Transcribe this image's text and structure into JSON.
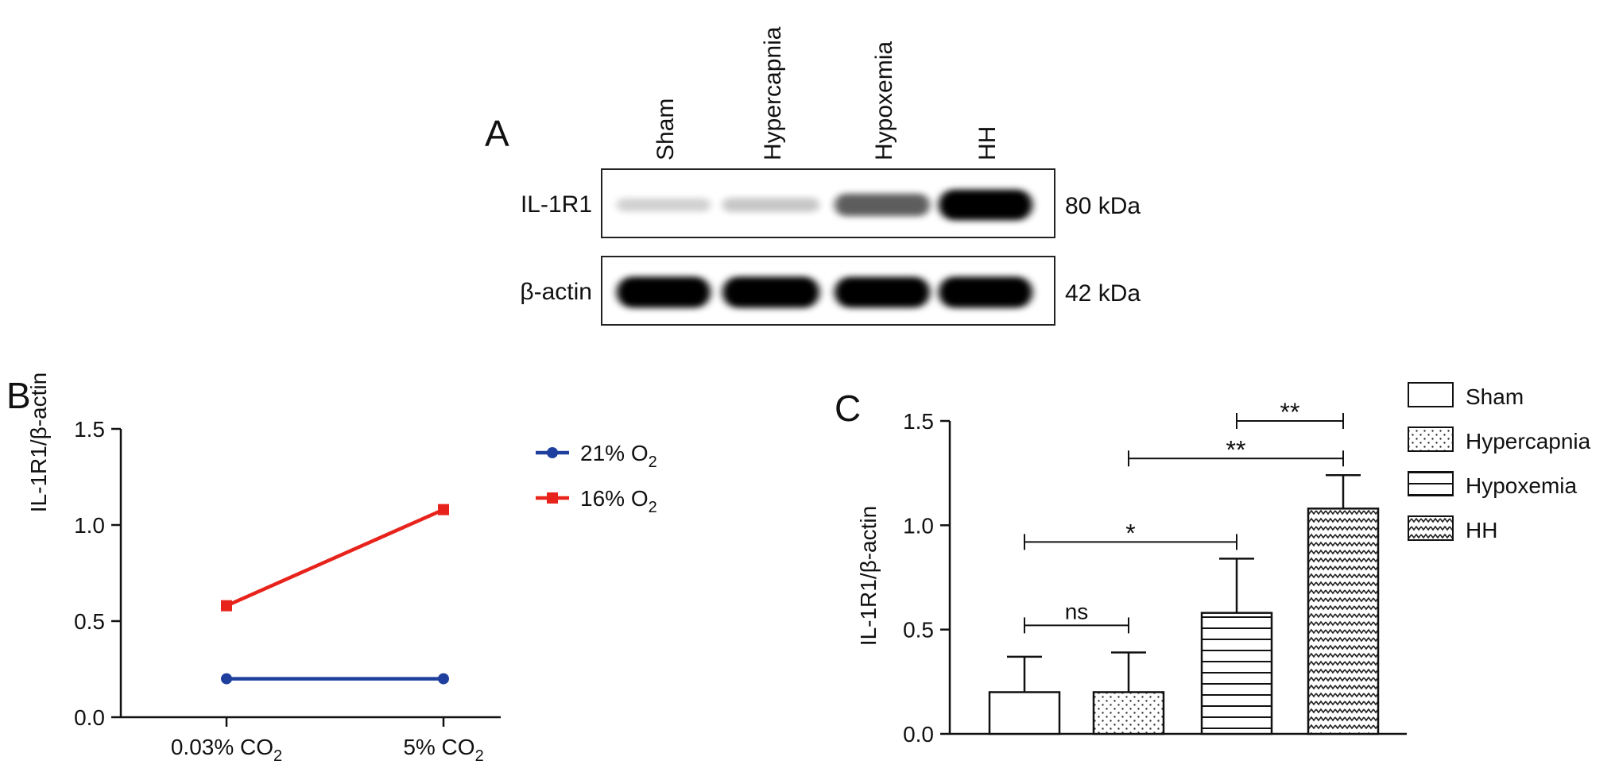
{
  "panels": {
    "a": "A",
    "b": "B",
    "c": "C"
  },
  "blot": {
    "lanes": [
      "Sham",
      "Hypercapnia",
      "Hypoxemia",
      "HH"
    ],
    "rows": [
      {
        "label": "IL-1R1",
        "kda": "80 kDa",
        "intensity": [
          0.1,
          0.14,
          0.55,
          0.95
        ]
      },
      {
        "label": "β-actin",
        "kda": "42 kDa",
        "intensity": [
          0.97,
          0.97,
          0.95,
          0.97
        ]
      }
    ]
  },
  "chart_data": [
    {
      "type": "line",
      "panel": "B",
      "ylabel": "IL-1R1/β-actin",
      "ylim": [
        0,
        1.5
      ],
      "yticks": [
        "0.0",
        "0.5",
        "1.0",
        "1.5"
      ],
      "categories": [
        {
          "pre": "0.03% CO",
          "sub": "2"
        },
        {
          "pre": "5% CO",
          "sub": "2"
        }
      ],
      "series": [
        {
          "name": {
            "pre": "21% O",
            "sub": "2"
          },
          "values": [
            0.2,
            0.2
          ],
          "color": "#1f3f9e",
          "marker": "circle"
        },
        {
          "name": {
            "pre": "16% O",
            "sub": "2"
          },
          "values": [
            0.58,
            1.08
          ],
          "color": "#e8231c",
          "marker": "square"
        }
      ],
      "legend": "right"
    },
    {
      "type": "bar",
      "panel": "C",
      "ylabel": "IL-1R1/β-actin",
      "ylim": [
        0,
        1.5
      ],
      "yticks": [
        "0.0",
        "0.5",
        "1.0",
        "1.5"
      ],
      "categories": [
        "Sham",
        "Hypercapnia",
        "Hypoxemia",
        "HH"
      ],
      "values": [
        0.2,
        0.2,
        0.58,
        1.08
      ],
      "errors": [
        0.17,
        0.19,
        0.26,
        0.16
      ],
      "patterns": [
        "none",
        "dots",
        "hlines",
        "waves"
      ],
      "legend": "right",
      "significance": [
        {
          "from": 0,
          "to": 1,
          "y": 0.52,
          "label": "ns"
        },
        {
          "from": 0,
          "to": 2,
          "y": 0.92,
          "label": "*"
        },
        {
          "from": 1,
          "to": 3,
          "y": 1.32,
          "label": "**"
        },
        {
          "from": 2,
          "to": 3,
          "y": 1.5,
          "label": "**"
        }
      ]
    }
  ]
}
